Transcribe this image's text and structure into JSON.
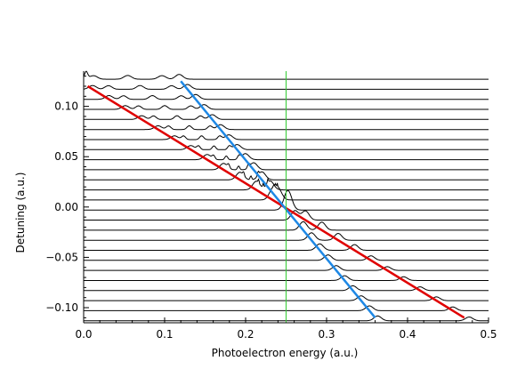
{
  "chart_data": {
    "type": "line",
    "title": "",
    "xlabel": "Photoelectron energy  (a.u.)",
    "ylabel": "Detuning  (a.u.)",
    "xlim": [
      0.0,
      0.5
    ],
    "ylim": [
      -0.115,
      0.135
    ],
    "grid": false,
    "x_ticks": [
      {
        "value": 0.0,
        "label": "0.0"
      },
      {
        "value": 0.1,
        "label": "0.1"
      },
      {
        "value": 0.2,
        "label": "0.2"
      },
      {
        "value": 0.3,
        "label": "0.3"
      },
      {
        "value": 0.4,
        "label": "0.4"
      },
      {
        "value": 0.5,
        "label": "0.5"
      }
    ],
    "y_ticks": [
      {
        "value": 0.1,
        "label": "0.10"
      },
      {
        "value": 0.05,
        "label": "0.05"
      },
      {
        "value": 0.0,
        "label": "0.00"
      },
      {
        "value": -0.05,
        "label": "−0.05"
      },
      {
        "value": -0.1,
        "label": "−0.10"
      }
    ],
    "traces": {
      "detuning_first": 0.127,
      "detuning_step": -0.01,
      "count": 25,
      "baseline_color": "#000000"
    },
    "peak_lines": [
      {
        "color": "#e00000",
        "x": [
          0.005,
          0.47
        ],
        "y": [
          0.12,
          -0.11
        ]
      },
      {
        "color": "#1e88e5",
        "x": [
          0.12,
          0.36
        ],
        "y": [
          0.125,
          -0.11
        ]
      }
    ],
    "reference_line": {
      "color": "#33cc33",
      "x": 0.25
    }
  }
}
